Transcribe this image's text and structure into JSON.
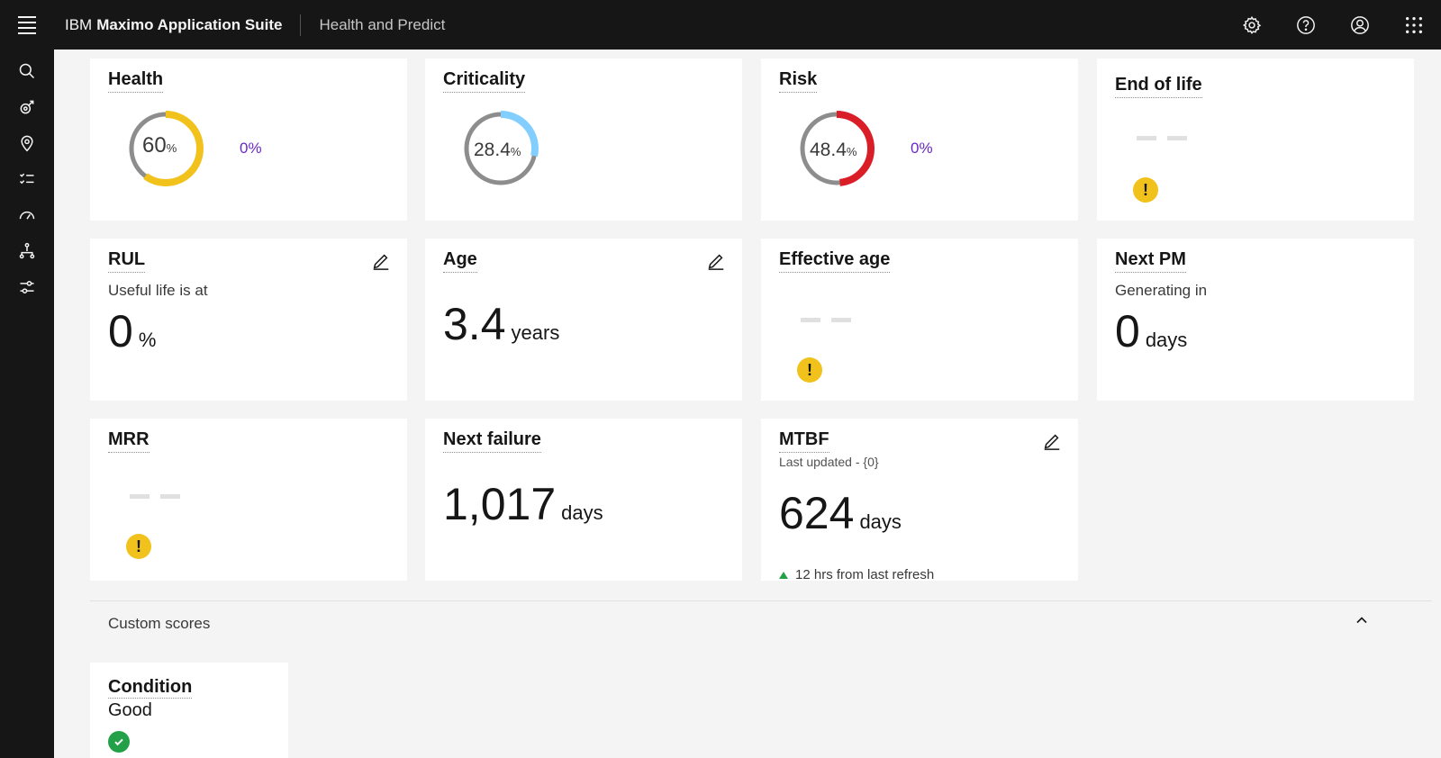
{
  "header": {
    "brand_prefix": "IBM",
    "brand_name": "Maximo Application Suite",
    "app_name": "Health and Predict"
  },
  "cards": {
    "health": {
      "title": "Health",
      "value": "60",
      "unit": "%",
      "change": "0%",
      "ring_fraction": 0.6,
      "ring_color": "#f1c21b"
    },
    "criticality": {
      "title": "Criticality",
      "value": "28.4",
      "unit": "%",
      "ring_fraction": 0.284,
      "ring_color": "#82cfff"
    },
    "risk": {
      "title": "Risk",
      "value": "48.4",
      "unit": "%",
      "change": "0%",
      "ring_fraction": 0.484,
      "ring_color": "#da1e28"
    },
    "end_of_life": {
      "title": "End of life"
    },
    "rul": {
      "title": "RUL",
      "subtitle": "Useful life is at",
      "value": "0",
      "unit": "%"
    },
    "age": {
      "title": "Age",
      "value": "3.4",
      "unit": "years"
    },
    "effective_age": {
      "title": "Effective age"
    },
    "next_pm": {
      "title": "Next PM",
      "subtitle": "Generating in",
      "value": "0",
      "unit": "days"
    },
    "mrr": {
      "title": "MRR"
    },
    "next_failure": {
      "title": "Next failure",
      "value": "1,017",
      "unit": "days"
    },
    "mtbf": {
      "title": "MTBF",
      "last_updated_label": "Last updated",
      "last_updated_value": "- {0}",
      "value": "624",
      "unit": "days",
      "trend": "12 hrs from last refresh"
    }
  },
  "custom_scores": {
    "title": "Custom scores",
    "condition": {
      "title": "Condition",
      "value": "Good"
    }
  },
  "colors": {
    "accent": "#6929c4",
    "warning": "#f1c21b",
    "success": "#24a148"
  }
}
